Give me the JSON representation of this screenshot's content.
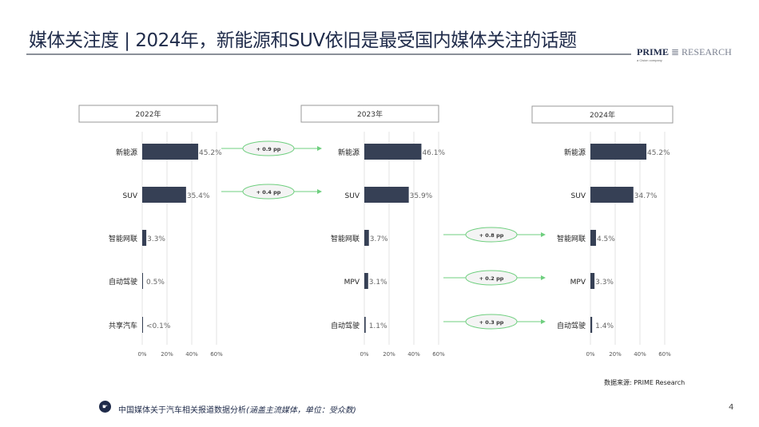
{
  "header": {
    "title": "媒体关注度 | 2024年，新能源和SUV依旧是最受国内媒体关注的话题",
    "logo": "PRIME RESEARCH",
    "logo_sub": "a Cision company"
  },
  "footer": {
    "note": "中国媒体关于汽车相关报道数据分析",
    "note_italic": "(涵盖主流媒体，单位：受众数)",
    "page": "4",
    "source": "数据来源: PRIME Research",
    "icon": "hand-pointing-icon"
  },
  "colors": {
    "bar": "#364055",
    "arrow": "#6fcf7f",
    "grid": "#e3e3e3"
  },
  "chart_data": [
    {
      "type": "bar",
      "title": "2022年",
      "xlim": [
        0,
        60
      ],
      "xticks": [
        "0%",
        "20%",
        "40%",
        "60%"
      ],
      "categories": [
        "新能源",
        "SUV",
        "智能网联",
        "自动驾驶",
        "共享汽车"
      ],
      "values": [
        45.2,
        35.4,
        3.3,
        0.5,
        0.05
      ],
      "labels": [
        "45.2%",
        "35.4%",
        "3.3%",
        "0.5%",
        "<0.1%"
      ]
    },
    {
      "type": "bar",
      "title": "2023年",
      "xlim": [
        0,
        60
      ],
      "xticks": [
        "0%",
        "20%",
        "40%",
        "60%"
      ],
      "categories": [
        "新能源",
        "SUV",
        "智能网联",
        "MPV",
        "自动驾驶"
      ],
      "values": [
        46.1,
        35.9,
        3.7,
        3.1,
        1.1
      ],
      "labels": [
        "46.1%",
        "35.9%",
        "3.7%",
        "3.1%",
        "1.1%"
      ]
    },
    {
      "type": "bar",
      "title": "2024年",
      "xlim": [
        0,
        60
      ],
      "xticks": [
        "0%",
        "20%",
        "40%",
        "60%"
      ],
      "categories": [
        "新能源",
        "SUV",
        "智能网联",
        "MPV",
        "自动驾驶"
      ],
      "values": [
        45.2,
        34.7,
        4.5,
        3.3,
        1.4
      ],
      "labels": [
        "45.2%",
        "34.7%",
        "4.5%",
        "3.3%",
        "1.4%"
      ]
    }
  ],
  "changes": [
    {
      "from": 0,
      "row": 0,
      "label": "+ 0.9 pp"
    },
    {
      "from": 0,
      "row": 1,
      "label": "+ 0.4 pp"
    },
    {
      "from": 1,
      "row": 2,
      "label": "+ 0.8 pp"
    },
    {
      "from": 1,
      "row": 3,
      "label": "+ 0.2 pp"
    },
    {
      "from": 1,
      "row": 4,
      "label": "+ 0.3 pp"
    }
  ]
}
